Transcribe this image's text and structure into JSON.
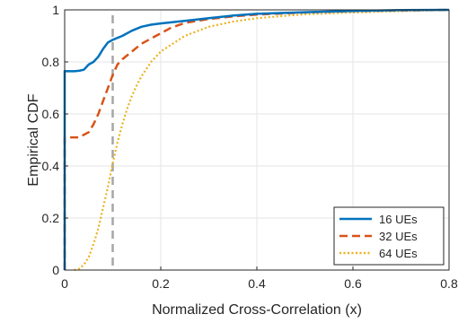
{
  "chart_data": {
    "type": "line",
    "title": "",
    "xlabel": "Normalized Cross-Correlation (x)",
    "ylabel": "Empirical CDF",
    "xlim": [
      0,
      0.8
    ],
    "ylim": [
      0,
      1
    ],
    "x_ticks": [
      "0",
      "0.2",
      "0.4",
      "0.6",
      "0.8"
    ],
    "y_ticks": [
      "0",
      "0.2",
      "0.4",
      "0.6",
      "0.8",
      "1"
    ],
    "grid": true,
    "legend_position": "bottom-right",
    "reference_line": {
      "x": 0.1,
      "style": "dashed",
      "color": "#a6a6a6"
    },
    "series": [
      {
        "name": "16 UEs",
        "color": "#0072BD",
        "style": "solid",
        "points": [
          [
            0,
            0
          ],
          [
            0,
            0.765
          ],
          [
            0.01,
            0.764
          ],
          [
            0.02,
            0.764
          ],
          [
            0.03,
            0.766
          ],
          [
            0.04,
            0.77
          ],
          [
            0.05,
            0.79
          ],
          [
            0.06,
            0.8
          ],
          [
            0.07,
            0.82
          ],
          [
            0.08,
            0.85
          ],
          [
            0.09,
            0.875
          ],
          [
            0.1,
            0.885
          ],
          [
            0.12,
            0.9
          ],
          [
            0.14,
            0.92
          ],
          [
            0.16,
            0.935
          ],
          [
            0.18,
            0.943
          ],
          [
            0.2,
            0.948
          ],
          [
            0.25,
            0.958
          ],
          [
            0.3,
            0.968
          ],
          [
            0.35,
            0.978
          ],
          [
            0.4,
            0.985
          ],
          [
            0.5,
            0.991
          ],
          [
            0.6,
            0.996
          ],
          [
            0.7,
            0.999
          ],
          [
            0.8,
            1.0
          ]
        ]
      },
      {
        "name": "32 UEs",
        "color": "#D95319",
        "style": "dashed",
        "points": [
          [
            0,
            0
          ],
          [
            0,
            0.51
          ],
          [
            0.01,
            0.51
          ],
          [
            0.03,
            0.51
          ],
          [
            0.05,
            0.53
          ],
          [
            0.06,
            0.56
          ],
          [
            0.07,
            0.6
          ],
          [
            0.08,
            0.65
          ],
          [
            0.09,
            0.7
          ],
          [
            0.1,
            0.75
          ],
          [
            0.11,
            0.79
          ],
          [
            0.12,
            0.81
          ],
          [
            0.14,
            0.84
          ],
          [
            0.16,
            0.87
          ],
          [
            0.18,
            0.89
          ],
          [
            0.2,
            0.91
          ],
          [
            0.22,
            0.93
          ],
          [
            0.25,
            0.95
          ],
          [
            0.3,
            0.965
          ],
          [
            0.35,
            0.975
          ],
          [
            0.4,
            0.982
          ],
          [
            0.5,
            0.99
          ],
          [
            0.6,
            0.995
          ],
          [
            0.7,
            0.998
          ],
          [
            0.8,
            1.0
          ]
        ]
      },
      {
        "name": "64 UEs",
        "color": "#EDB120",
        "style": "dotted",
        "points": [
          [
            0.02,
            0
          ],
          [
            0.03,
            0.005
          ],
          [
            0.04,
            0.02
          ],
          [
            0.05,
            0.05
          ],
          [
            0.06,
            0.1
          ],
          [
            0.07,
            0.16
          ],
          [
            0.08,
            0.24
          ],
          [
            0.09,
            0.32
          ],
          [
            0.1,
            0.41
          ],
          [
            0.11,
            0.49
          ],
          [
            0.12,
            0.56
          ],
          [
            0.13,
            0.62
          ],
          [
            0.14,
            0.67
          ],
          [
            0.15,
            0.71
          ],
          [
            0.16,
            0.745
          ],
          [
            0.18,
            0.8
          ],
          [
            0.2,
            0.84
          ],
          [
            0.25,
            0.9
          ],
          [
            0.3,
            0.935
          ],
          [
            0.35,
            0.955
          ],
          [
            0.4,
            0.968
          ],
          [
            0.45,
            0.976
          ],
          [
            0.5,
            0.983
          ],
          [
            0.6,
            0.99
          ],
          [
            0.7,
            0.995
          ],
          [
            0.8,
            1.0
          ]
        ]
      }
    ]
  }
}
